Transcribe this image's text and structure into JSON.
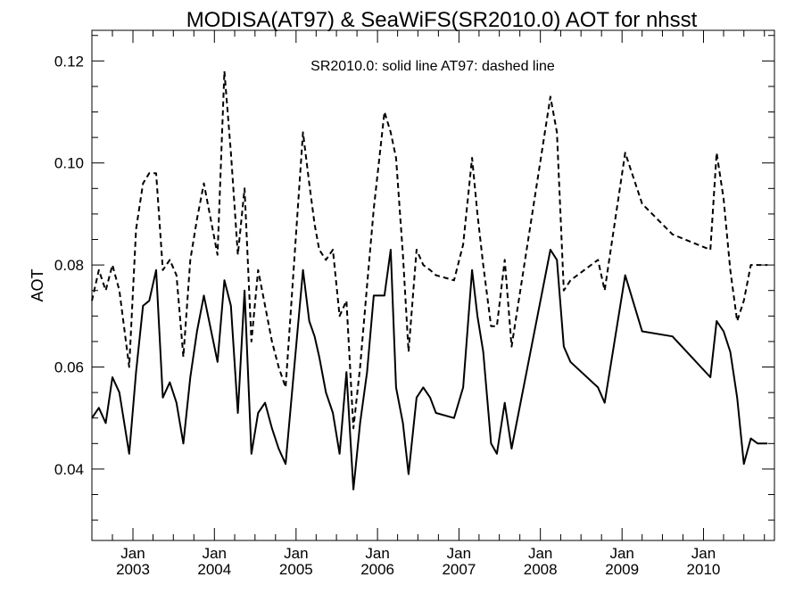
{
  "chart_data": {
    "type": "line",
    "title": "MODISA(AT97) & SeaWiFS(SR2010.0)  AOT for nhsst",
    "annotation": "SR2010.0: solid line   AT97: dashed line",
    "ylabel": "AOT",
    "xlabel": "",
    "ylim": [
      0.026,
      0.126
    ],
    "xlim": [
      "2002-07-01",
      "2010-11-15"
    ],
    "y_ticks": [
      0.04,
      0.06,
      0.08,
      0.1,
      0.12
    ],
    "y_tick_labels": [
      "0.04",
      "0.06",
      "0.08",
      "0.10",
      "0.12"
    ],
    "x_ticks": [
      {
        "date": "2003-01-01",
        "month": "Jan",
        "year": "2003"
      },
      {
        "date": "2004-01-01",
        "month": "Jan",
        "year": "2004"
      },
      {
        "date": "2005-01-01",
        "month": "Jan",
        "year": "2005"
      },
      {
        "date": "2006-01-01",
        "month": "Jan",
        "year": "2006"
      },
      {
        "date": "2007-01-01",
        "month": "Jan",
        "year": "2007"
      },
      {
        "date": "2008-01-01",
        "month": "Jan",
        "year": "2008"
      },
      {
        "date": "2009-01-01",
        "month": "Jan",
        "year": "2009"
      },
      {
        "date": "2010-01-01",
        "month": "Jan",
        "year": "2010"
      }
    ],
    "grid": false,
    "series": [
      {
        "name": "SR2010.0",
        "style": "solid",
        "color": "#000000",
        "x": [
          "2002-07-01",
          "2002-08-01",
          "2002-09-01",
          "2002-10-01",
          "2002-11-01",
          "2002-12-15",
          "2003-01-15",
          "2003-02-15",
          "2003-03-15",
          "2003-04-15",
          "2003-05-15",
          "2003-06-15",
          "2003-07-15",
          "2003-08-15",
          "2003-09-15",
          "2003-10-15",
          "2003-11-15",
          "2004-01-15",
          "2004-02-15",
          "2004-03-15",
          "2004-04-15",
          "2004-05-15",
          "2004-06-15",
          "2004-07-15",
          "2004-08-15",
          "2004-09-15",
          "2004-10-15",
          "2004-11-15",
          "2005-02-01",
          "2005-03-01",
          "2005-03-25",
          "2005-04-15",
          "2005-05-15",
          "2005-06-15",
          "2005-07-15",
          "2005-08-15",
          "2005-09-15",
          "2005-10-15",
          "2005-11-15",
          "2005-12-15",
          "2006-02-01",
          "2006-03-01",
          "2006-03-25",
          "2006-04-25",
          "2006-05-20",
          "2006-06-25",
          "2006-07-25",
          "2006-08-25",
          "2006-09-20",
          "2006-12-10",
          "2007-01-20",
          "2007-03-01",
          "2007-03-25",
          "2007-04-20",
          "2007-05-25",
          "2007-06-20",
          "2007-07-25",
          "2007-08-25",
          "2008-02-15",
          "2008-03-15",
          "2008-04-15",
          "2008-05-15",
          "2008-09-15",
          "2008-10-15",
          "2009-01-15",
          "2009-04-01",
          "2009-08-15",
          "2010-02-01",
          "2010-03-01",
          "2010-04-01",
          "2010-05-01",
          "2010-06-01",
          "2010-07-01",
          "2010-08-01",
          "2010-09-01",
          "2010-10-15"
        ],
        "values": [
          0.05,
          0.052,
          0.049,
          0.058,
          0.055,
          0.043,
          0.059,
          0.072,
          0.073,
          0.079,
          0.054,
          0.057,
          0.053,
          0.045,
          0.058,
          0.067,
          0.074,
          0.061,
          0.077,
          0.072,
          0.051,
          0.075,
          0.043,
          0.051,
          0.053,
          0.048,
          0.044,
          0.041,
          0.079,
          0.069,
          0.066,
          0.062,
          0.055,
          0.051,
          0.043,
          0.059,
          0.036,
          0.049,
          0.059,
          0.074,
          0.074,
          0.083,
          0.056,
          0.049,
          0.039,
          0.054,
          0.056,
          0.054,
          0.051,
          0.05,
          0.056,
          0.079,
          0.07,
          0.063,
          0.045,
          0.043,
          0.053,
          0.044,
          0.083,
          0.081,
          0.064,
          0.061,
          0.056,
          0.053,
          0.078,
          0.067,
          0.066,
          0.058,
          0.069,
          0.067,
          0.063,
          0.054,
          0.041,
          0.046,
          0.045,
          0.045
        ]
      },
      {
        "name": "AT97",
        "style": "dashed",
        "color": "#000000",
        "x": [
          "2002-07-01",
          "2002-08-01",
          "2002-09-01",
          "2002-10-01",
          "2002-11-01",
          "2002-12-15",
          "2003-01-15",
          "2003-02-15",
          "2003-03-15",
          "2003-04-15",
          "2003-05-15",
          "2003-06-15",
          "2003-07-15",
          "2003-08-15",
          "2003-09-15",
          "2003-10-15",
          "2003-11-15",
          "2004-01-15",
          "2004-02-15",
          "2004-03-15",
          "2004-04-15",
          "2004-05-15",
          "2004-06-15",
          "2004-07-15",
          "2004-08-15",
          "2004-09-15",
          "2004-10-15",
          "2004-11-15",
          "2005-02-01",
          "2005-03-01",
          "2005-03-25",
          "2005-04-15",
          "2005-05-15",
          "2005-06-15",
          "2005-07-15",
          "2005-08-15",
          "2005-09-15",
          "2005-10-15",
          "2005-11-15",
          "2005-12-15",
          "2006-02-01",
          "2006-03-01",
          "2006-03-25",
          "2006-04-25",
          "2006-05-20",
          "2006-06-25",
          "2006-07-25",
          "2006-08-25",
          "2006-09-20",
          "2006-12-10",
          "2007-01-20",
          "2007-03-01",
          "2007-03-25",
          "2007-04-20",
          "2007-05-25",
          "2007-06-20",
          "2007-07-25",
          "2007-08-25",
          "2008-02-15",
          "2008-03-15",
          "2008-04-15",
          "2008-05-15",
          "2008-09-15",
          "2008-10-15",
          "2009-01-15",
          "2009-04-01",
          "2009-08-15",
          "2010-02-01",
          "2010-03-01",
          "2010-04-01",
          "2010-05-01",
          "2010-06-01",
          "2010-07-01",
          "2010-08-01",
          "2010-09-01",
          "2010-10-15"
        ],
        "values": [
          0.073,
          0.079,
          0.075,
          0.08,
          0.075,
          0.06,
          0.087,
          0.096,
          0.098,
          0.098,
          0.079,
          0.081,
          0.078,
          0.062,
          0.081,
          0.089,
          0.096,
          0.082,
          0.118,
          0.102,
          0.082,
          0.095,
          0.065,
          0.079,
          0.072,
          0.065,
          0.06,
          0.056,
          0.106,
          0.096,
          0.088,
          0.083,
          0.081,
          0.083,
          0.07,
          0.073,
          0.048,
          0.06,
          0.076,
          0.091,
          0.11,
          0.106,
          0.101,
          0.082,
          0.063,
          0.083,
          0.08,
          0.079,
          0.078,
          0.077,
          0.084,
          0.101,
          0.09,
          0.08,
          0.068,
          0.068,
          0.081,
          0.064,
          0.113,
          0.106,
          0.075,
          0.077,
          0.081,
          0.075,
          0.102,
          0.092,
          0.086,
          0.083,
          0.102,
          0.093,
          0.079,
          0.069,
          0.073,
          0.08,
          0.08,
          0.08
        ]
      }
    ]
  }
}
